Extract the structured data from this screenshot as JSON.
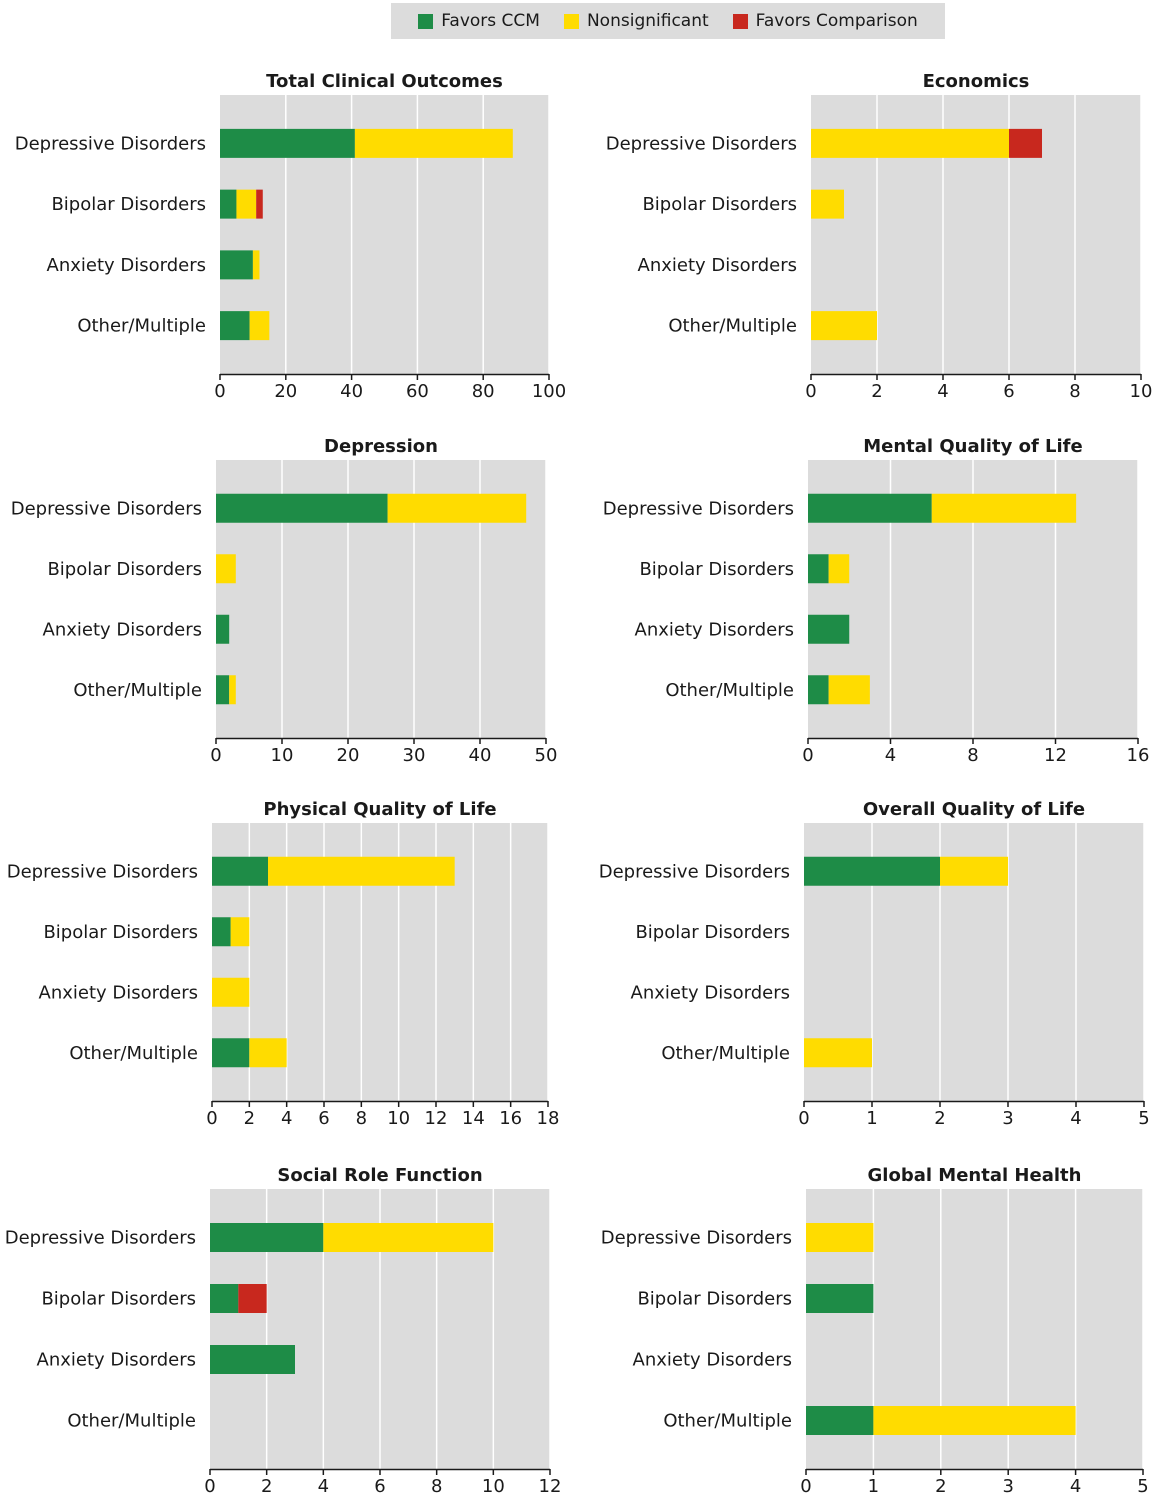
{
  "legend": [
    {
      "label": "Favors CCM",
      "color": "#1e8c47"
    },
    {
      "label": "Nonsignificant",
      "color": "#ffdc00"
    },
    {
      "label": "Favors Comparison",
      "color": "#c8281e"
    }
  ],
  "colors": {
    "plot_background": "#dcdcdc",
    "grid": "#ffffff"
  },
  "chart_data": [
    {
      "type": "bar",
      "orientation": "horizontal",
      "stacked": true,
      "title": "Total Clinical Outcomes",
      "categories": [
        "Depressive Disorders",
        "Bipolar Disorders",
        "Anxiety Disorders",
        "Other/Multiple"
      ],
      "series": [
        {
          "name": "Favors CCM",
          "values": [
            41,
            5,
            10,
            9
          ]
        },
        {
          "name": "Nonsignificant",
          "values": [
            48,
            6,
            2,
            6
          ]
        },
        {
          "name": "Favors Comparison",
          "values": [
            0,
            2,
            0,
            0
          ]
        }
      ],
      "xlim": [
        0,
        100
      ],
      "xticks": [
        0,
        20,
        40,
        60,
        80,
        100
      ],
      "grid": true
    },
    {
      "type": "bar",
      "orientation": "horizontal",
      "stacked": true,
      "title": "Economics",
      "categories": [
        "Depressive Disorders",
        "Bipolar Disorders",
        "Anxiety Disorders",
        "Other/Multiple"
      ],
      "series": [
        {
          "name": "Favors CCM",
          "values": [
            0,
            0,
            0,
            0
          ]
        },
        {
          "name": "Nonsignificant",
          "values": [
            6,
            1,
            0,
            2
          ]
        },
        {
          "name": "Favors Comparison",
          "values": [
            1,
            0,
            0,
            0
          ]
        }
      ],
      "xlim": [
        0,
        10
      ],
      "xticks": [
        0,
        2,
        4,
        6,
        8,
        10
      ],
      "grid": true
    },
    {
      "type": "bar",
      "orientation": "horizontal",
      "stacked": true,
      "title": "Depression",
      "categories": [
        "Depressive Disorders",
        "Bipolar Disorders",
        "Anxiety Disorders",
        "Other/Multiple"
      ],
      "series": [
        {
          "name": "Favors CCM",
          "values": [
            26,
            0,
            2,
            2
          ]
        },
        {
          "name": "Nonsignificant",
          "values": [
            21,
            3,
            0,
            1
          ]
        },
        {
          "name": "Favors Comparison",
          "values": [
            0,
            0,
            0,
            0
          ]
        }
      ],
      "xlim": [
        0,
        50
      ],
      "xticks": [
        0,
        10,
        20,
        30,
        40,
        50
      ],
      "grid": true
    },
    {
      "type": "bar",
      "orientation": "horizontal",
      "stacked": true,
      "title": "Mental Quality of Life",
      "categories": [
        "Depressive Disorders",
        "Bipolar Disorders",
        "Anxiety Disorders",
        "Other/Multiple"
      ],
      "series": [
        {
          "name": "Favors CCM",
          "values": [
            6,
            1,
            2,
            1
          ]
        },
        {
          "name": "Nonsignificant",
          "values": [
            7,
            1,
            0,
            2
          ]
        },
        {
          "name": "Favors Comparison",
          "values": [
            0,
            0,
            0,
            0
          ]
        }
      ],
      "xlim": [
        0,
        16
      ],
      "xticks": [
        0,
        4,
        8,
        12,
        16
      ],
      "grid": true
    },
    {
      "type": "bar",
      "orientation": "horizontal",
      "stacked": true,
      "title": "Physical Quality of Life",
      "categories": [
        "Depressive Disorders",
        "Bipolar Disorders",
        "Anxiety Disorders",
        "Other/Multiple"
      ],
      "series": [
        {
          "name": "Favors CCM",
          "values": [
            3,
            1,
            0,
            2
          ]
        },
        {
          "name": "Nonsignificant",
          "values": [
            10,
            1,
            2,
            2
          ]
        },
        {
          "name": "Favors Comparison",
          "values": [
            0,
            0,
            0,
            0
          ]
        }
      ],
      "xlim": [
        0,
        18
      ],
      "xticks": [
        0,
        2,
        4,
        6,
        8,
        10,
        12,
        14,
        16,
        18
      ],
      "grid": true
    },
    {
      "type": "bar",
      "orientation": "horizontal",
      "stacked": true,
      "title": "Overall Quality of Life",
      "categories": [
        "Depressive Disorders",
        "Bipolar Disorders",
        "Anxiety Disorders",
        "Other/Multiple"
      ],
      "series": [
        {
          "name": "Favors CCM",
          "values": [
            2,
            0,
            0,
            0
          ]
        },
        {
          "name": "Nonsignificant",
          "values": [
            1,
            0,
            0,
            1
          ]
        },
        {
          "name": "Favors Comparison",
          "values": [
            0,
            0,
            0,
            0
          ]
        }
      ],
      "xlim": [
        0,
        5
      ],
      "xticks": [
        0,
        1,
        2,
        3,
        4,
        5
      ],
      "grid": true
    },
    {
      "type": "bar",
      "orientation": "horizontal",
      "stacked": true,
      "title": "Social Role Function",
      "categories": [
        "Depressive Disorders",
        "Bipolar Disorders",
        "Anxiety Disorders",
        "Other/Multiple"
      ],
      "series": [
        {
          "name": "Favors CCM",
          "values": [
            4,
            1,
            3,
            0
          ]
        },
        {
          "name": "Nonsignificant",
          "values": [
            6,
            0,
            0,
            0
          ]
        },
        {
          "name": "Favors Comparison",
          "values": [
            0,
            1,
            0,
            0
          ]
        }
      ],
      "xlim": [
        0,
        12
      ],
      "xticks": [
        0,
        2,
        4,
        6,
        8,
        10,
        12
      ],
      "grid": true
    },
    {
      "type": "bar",
      "orientation": "horizontal",
      "stacked": true,
      "title": "Global Mental Health",
      "categories": [
        "Depressive Disorders",
        "Bipolar Disorders",
        "Anxiety Disorders",
        "Other/Multiple"
      ],
      "series": [
        {
          "name": "Favors CCM",
          "values": [
            0,
            1,
            0,
            1
          ]
        },
        {
          "name": "Nonsignificant",
          "values": [
            1,
            0,
            0,
            3
          ]
        },
        {
          "name": "Favors Comparison",
          "values": [
            0,
            0,
            0,
            0
          ]
        }
      ],
      "xlim": [
        0,
        5
      ],
      "xticks": [
        0,
        1,
        2,
        3,
        4,
        5
      ],
      "grid": true
    }
  ]
}
